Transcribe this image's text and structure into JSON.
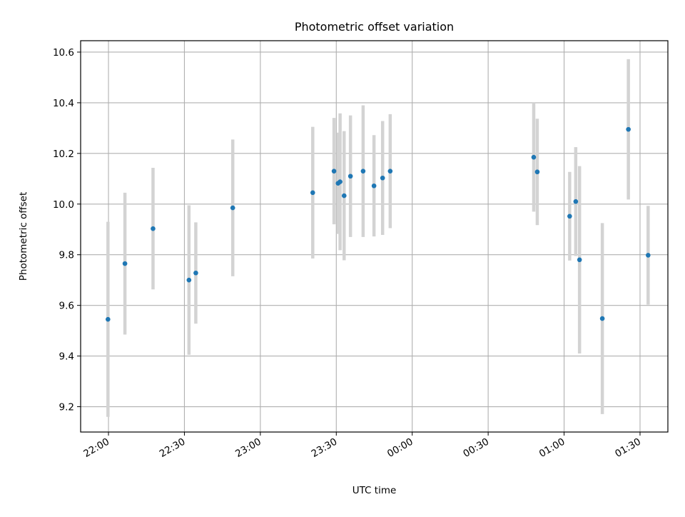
{
  "chart_data": {
    "type": "scatter",
    "title": "Photometric offset variation",
    "xlabel": "UTC time",
    "ylabel": "Photometric offset",
    "x_axis_type": "time",
    "x_start_date": "",
    "xlim": [
      "21:49",
      "01:41"
    ],
    "ylim": [
      9.1,
      10.645
    ],
    "x_ticks": [
      {
        "time": "22:00",
        "label": "22:00"
      },
      {
        "time": "22:30",
        "label": "22:30"
      },
      {
        "time": "23:00",
        "label": "23:00"
      },
      {
        "time": "23:30",
        "label": "23:30"
      },
      {
        "time": "00:00",
        "label": "00:00"
      },
      {
        "time": "00:30",
        "label": "00:30"
      },
      {
        "time": "01:00",
        "label": "01:00"
      },
      {
        "time": "01:30",
        "label": "01:30"
      }
    ],
    "y_ticks": [
      9.2,
      9.4,
      9.6,
      9.8,
      10.0,
      10.2,
      10.4,
      10.6
    ],
    "y_tick_labels": [
      "9.2",
      "9.4",
      "9.6",
      "9.8",
      "10.0",
      "10.2",
      "10.4",
      "10.6"
    ],
    "grid": true,
    "marker_color": "#1f77b4",
    "errorbar_color": "#d3d3d3",
    "points": [
      {
        "t": "21:59.8",
        "y": 9.545,
        "err": 0.385
      },
      {
        "t": "22:06.5",
        "y": 9.765,
        "err": 0.28
      },
      {
        "t": "22:17.6",
        "y": 9.903,
        "err": 0.24
      },
      {
        "t": "22:31.8",
        "y": 9.7,
        "err": 0.295
      },
      {
        "t": "22:34.5",
        "y": 9.728,
        "err": 0.2
      },
      {
        "t": "22:49.1",
        "y": 9.985,
        "err": 0.27
      },
      {
        "t": "23:20.7",
        "y": 10.045,
        "err": 0.26
      },
      {
        "t": "23:29.1",
        "y": 10.13,
        "err": 0.21
      },
      {
        "t": "23:30.7",
        "y": 10.082,
        "err": 0.2
      },
      {
        "t": "23:31.5",
        "y": 10.088,
        "err": 0.27
      },
      {
        "t": "23:33.1",
        "y": 10.033,
        "err": 0.255
      },
      {
        "t": "23:35.6",
        "y": 10.11,
        "err": 0.24
      },
      {
        "t": "23:40.6",
        "y": 10.13,
        "err": 0.26
      },
      {
        "t": "23:44.9",
        "y": 10.072,
        "err": 0.2
      },
      {
        "t": "23:48.3",
        "y": 10.103,
        "err": 0.225
      },
      {
        "t": "23:51.3",
        "y": 10.13,
        "err": 0.225
      },
      {
        "t": "00:48.0",
        "y": 10.185,
        "err": 0.215
      },
      {
        "t": "00:49.4",
        "y": 10.127,
        "err": 0.21
      },
      {
        "t": "01:02.2",
        "y": 9.952,
        "err": 0.175
      },
      {
        "t": "01:04.6",
        "y": 10.01,
        "err": 0.215
      },
      {
        "t": "01:06.1",
        "y": 9.78,
        "err": 0.37
      },
      {
        "t": "01:15.1",
        "y": 9.548,
        "err": 0.377
      },
      {
        "t": "01:25.4",
        "y": 10.295,
        "err": 0.277
      },
      {
        "t": "01:33.2",
        "y": 9.798,
        "err": 0.195
      }
    ]
  }
}
